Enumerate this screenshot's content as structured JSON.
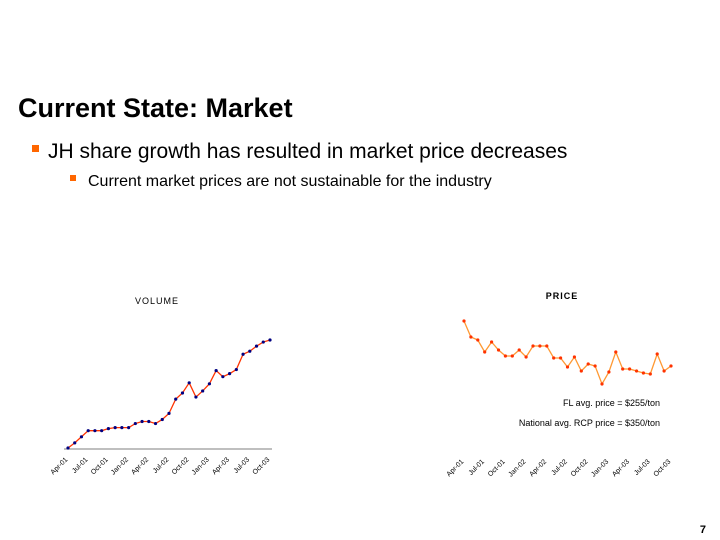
{
  "title": "Current State: Market",
  "bullets": [
    {
      "text": "JH share growth has resulted in market price decreases",
      "sub": [
        "Current market prices are not sustainable for the industry"
      ]
    }
  ],
  "page_number": "7",
  "chart_data": [
    {
      "type": "line",
      "title": "VOLUME",
      "categories": [
        "Apr-01",
        null,
        null,
        "Jul-01",
        null,
        null,
        "Oct-01",
        null,
        null,
        "Jan-02",
        null,
        null,
        "Apr-02",
        null,
        null,
        "Jul-02",
        null,
        null,
        "Oct-02",
        null,
        null,
        "Jan-03",
        null,
        null,
        "Apr-03",
        null,
        null,
        "Jul-03",
        null,
        null,
        "Oct-03"
      ],
      "color": "#ff3300",
      "marker_color": "#000080",
      "values": [
        0,
        5,
        11,
        17,
        17,
        17,
        19,
        20,
        20,
        20,
        24,
        26,
        26,
        24,
        28,
        34,
        48,
        54,
        64,
        50,
        56,
        63,
        76,
        70,
        73,
        77,
        92,
        95,
        100,
        104,
        106
      ]
    },
    {
      "type": "line",
      "title": "PRICE",
      "categories": [
        "Apr-01",
        null,
        null,
        "Jul-01",
        null,
        null,
        "Oct-01",
        null,
        null,
        "Jan-02",
        null,
        null,
        "Apr-02",
        null,
        null,
        "Jul-02",
        null,
        null,
        "Oct-02",
        null,
        null,
        "Jan-03",
        null,
        null,
        "Apr-03",
        null,
        null,
        "Jul-03",
        null,
        null,
        "Oct-03"
      ],
      "color": "#ff9933",
      "marker_color": "#ff3300",
      "values": [
        79,
        63,
        60,
        48,
        58,
        50,
        44,
        44,
        50,
        43,
        54,
        54,
        54,
        42,
        42,
        33,
        43,
        29,
        36,
        34,
        16,
        28,
        48,
        31,
        31,
        29,
        27,
        26,
        46,
        29,
        34
      ],
      "annotations": [
        "FL avg. price = $255/ton",
        "National avg. RCP price = $350/ton"
      ]
    }
  ]
}
